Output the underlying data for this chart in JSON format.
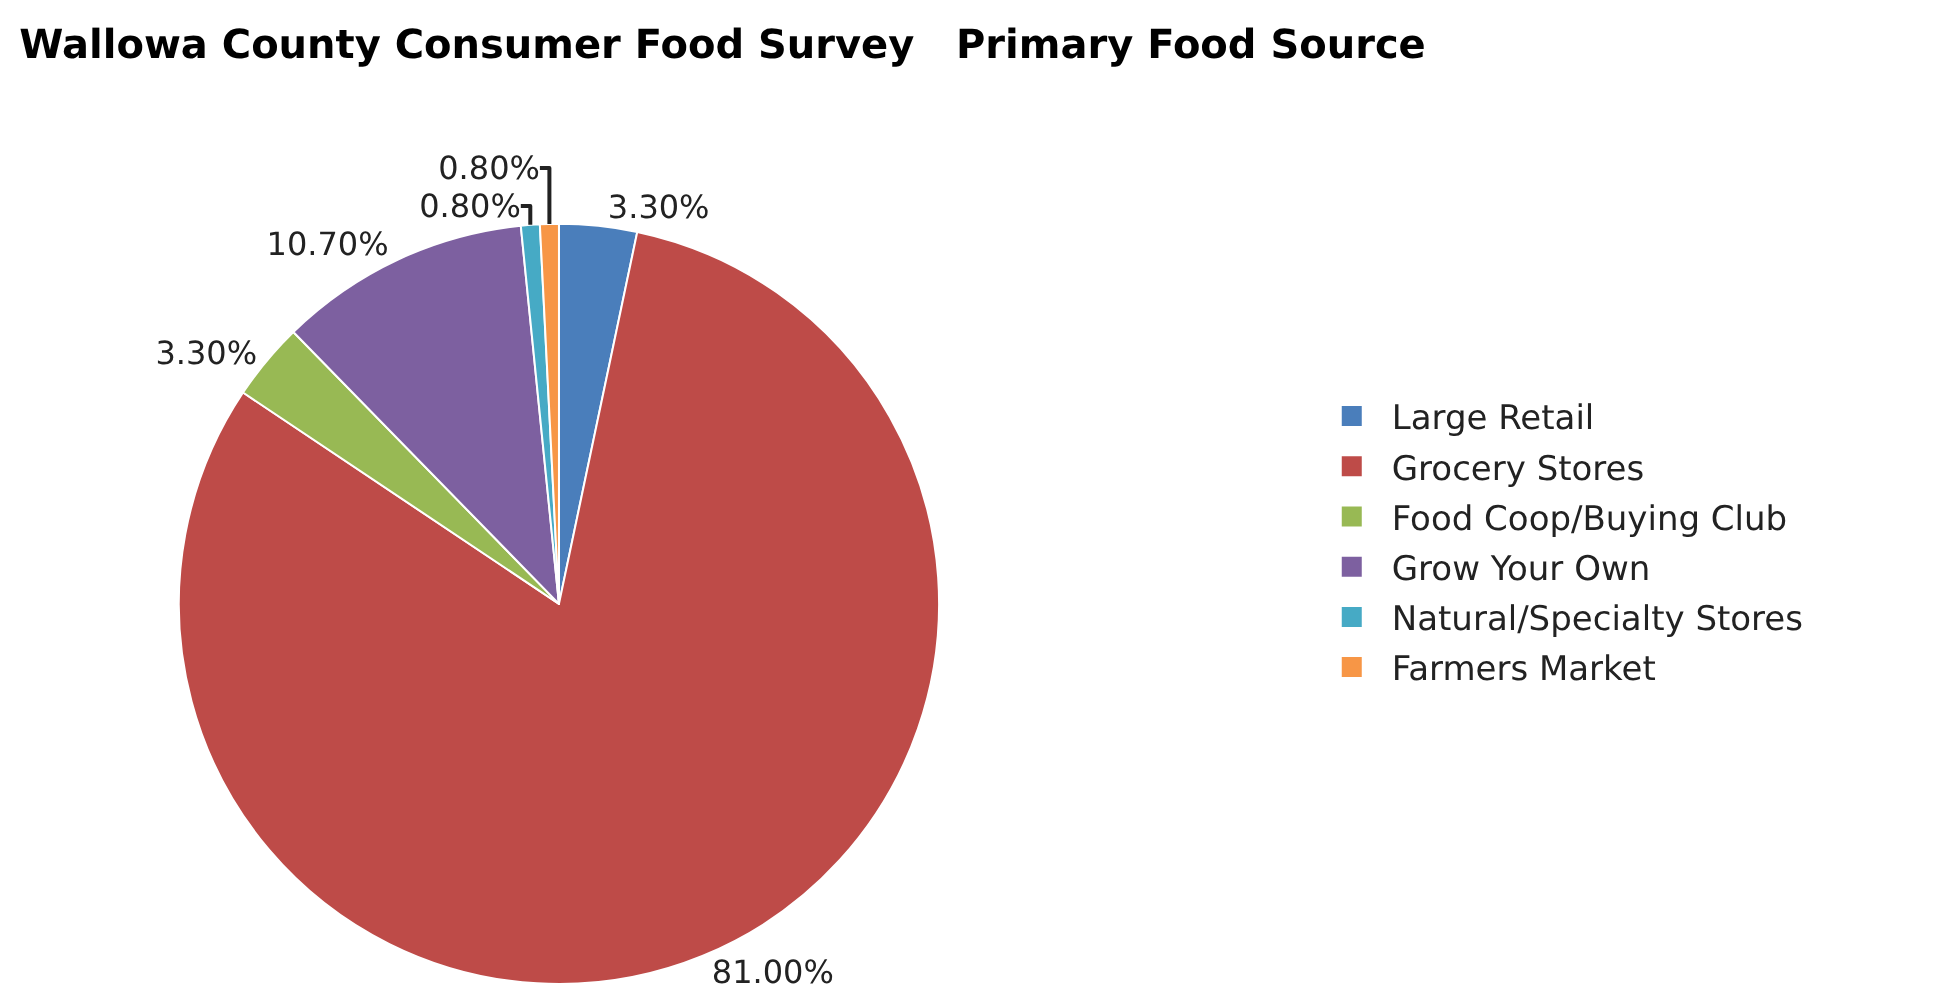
{
  "chart_data": {
    "type": "pie",
    "title": "Wallowa County Consumer Food Survey   Primary Food Source",
    "categories": [
      "Large Retail",
      "Grocery Stores",
      "Food Coop/Buying Club",
      "Grow Your Own",
      "Natural/Specialty Stores",
      "Farmers Market"
    ],
    "values": [
      3.3,
      81.0,
      3.3,
      10.7,
      0.8,
      0.8
    ],
    "value_labels": [
      "3.30%",
      "81.00%",
      "3.30%",
      "10.70%",
      "0.80%",
      "0.80%"
    ],
    "colors": [
      "#4a7ebb",
      "#be4b48",
      "#98b954",
      "#7d60a0",
      "#46aac5",
      "#f79646"
    ],
    "legend": "right"
  }
}
